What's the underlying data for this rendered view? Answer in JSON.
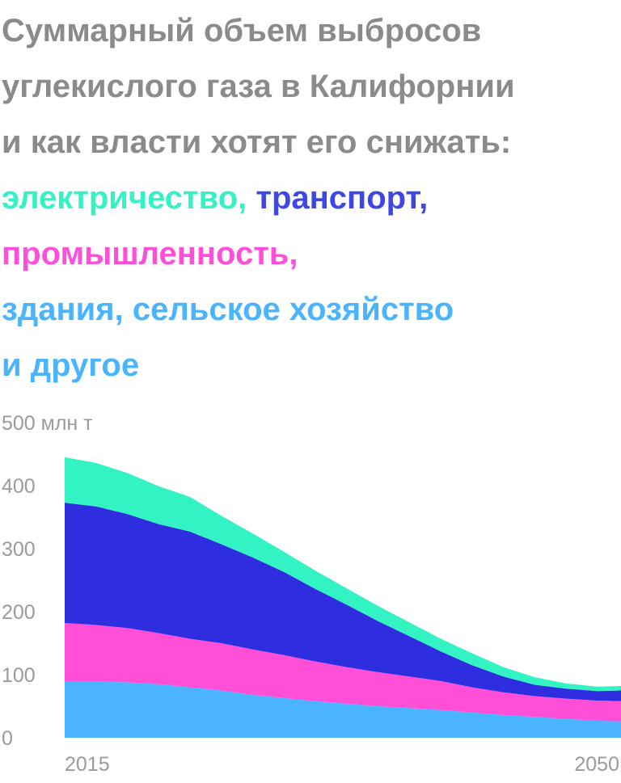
{
  "title": {
    "lines": [
      "Суммарный объем выбросов",
      "углекислого газа в Калифорнии",
      "и как власти хотят его снижать:"
    ],
    "legend_parts": [
      {
        "text": "электричество",
        "color": "#33f2c3"
      },
      {
        "text": "транспорт,",
        "color": "#3d47e3"
      },
      {
        "text": "промышленность,",
        "color": "#ff4fd8"
      },
      {
        "text": "здания, сельское хозяйство",
        "color": "#4ab4ff"
      },
      {
        "text": "и другое",
        "color": "#4ab4ff"
      }
    ],
    "separator": ", "
  },
  "colors": {
    "title_gray": "#8b8b8b",
    "tick_gray": "#9b9b9b"
  },
  "chart_data": {
    "type": "area",
    "stacked": true,
    "x": [
      2015,
      2017,
      2019,
      2021,
      2023,
      2025,
      2027,
      2029,
      2031,
      2033,
      2035,
      2037,
      2039,
      2041,
      2043,
      2045,
      2047,
      2049,
      2050.5
    ],
    "xlabel_ticks": [
      "2015",
      "2050"
    ],
    "yticks": [
      "0",
      "100",
      "200",
      "300",
      "400",
      "500 млн т"
    ],
    "ylim": [
      0,
      500
    ],
    "series": [
      {
        "name": "здания, сельское хозяйство и другое",
        "color": "#4ab4ff",
        "values": [
          89,
          89,
          88,
          85,
          80,
          75,
          68,
          63,
          58,
          54,
          50,
          47,
          44,
          40,
          36,
          33,
          30,
          27,
          26
        ]
      },
      {
        "name": "промышленность",
        "color": "#ff4fd8",
        "values": [
          93,
          90,
          86,
          81,
          77,
          75,
          72,
          68,
          63,
          58,
          54,
          50,
          46,
          40,
          36,
          33,
          32,
          32,
          32
        ]
      },
      {
        "name": "транспорт",
        "color": "#2e2ee0",
        "values": [
          191,
          188,
          181,
          173,
          170,
          157,
          146,
          132,
          115,
          99,
          81,
          64,
          47,
          35,
          25,
          18,
          16,
          15,
          17
        ]
      },
      {
        "name": "электричество",
        "color": "#33f2c3",
        "values": [
          72,
          69,
          65,
          60,
          55,
          45,
          38,
          32,
          29,
          26,
          24,
          22,
          20,
          19,
          15,
          12,
          8,
          7,
          7
        ]
      }
    ]
  }
}
